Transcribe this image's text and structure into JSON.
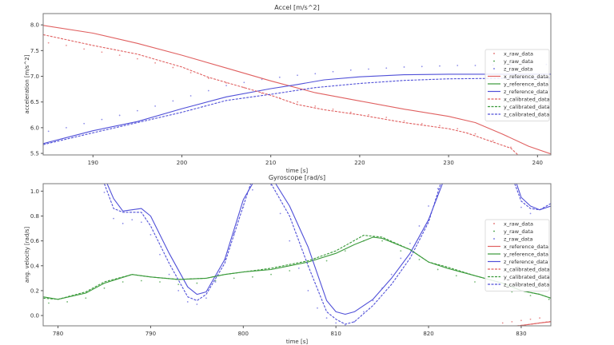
{
  "chart_data": [
    {
      "type": "line",
      "title": "Accel [m/s^2]",
      "xlabel": "time [s]",
      "ylabel": "acceleration [m/s^2]",
      "xlim": [
        184.4,
        241.5
      ],
      "ylim": [
        5.47,
        8.22
      ],
      "xticks": [
        190,
        200,
        210,
        220,
        230,
        240
      ],
      "yticks": [
        5.5,
        6.0,
        6.5,
        7.0,
        7.5,
        8.0
      ],
      "ytick_labels": [
        "5.5",
        "6.0",
        "6.5",
        "7.0",
        "7.5",
        "8.0"
      ],
      "grid": false,
      "legend_placement": "center right",
      "series": [
        {
          "name": "x_raw_data",
          "color": "#e06060",
          "style": "dots",
          "x": [
            185,
            187,
            189,
            191,
            193,
            195,
            197,
            199,
            201,
            203,
            205,
            207,
            209,
            211,
            213,
            215,
            217,
            219,
            221,
            223,
            225,
            227,
            229,
            231,
            233,
            235,
            237
          ],
          "y": [
            7.65,
            7.6,
            7.53,
            7.47,
            7.41,
            7.34,
            7.26,
            7.17,
            7.07,
            6.96,
            6.87,
            6.78,
            6.67,
            6.58,
            6.5,
            6.42,
            6.36,
            6.3,
            6.25,
            6.2,
            6.13,
            6.08,
            6.04,
            5.98,
            5.88,
            5.75,
            5.62
          ]
        },
        {
          "name": "y_raw_data",
          "color": "#3a9a3a",
          "style": "dots",
          "x": [],
          "y": []
        },
        {
          "name": "z_raw_data",
          "color": "#6060e0",
          "style": "dots",
          "x": [
            185,
            187,
            189,
            191,
            193,
            195,
            197,
            199,
            201,
            203,
            205,
            207,
            209,
            211,
            213,
            215,
            217,
            219,
            221,
            223,
            225,
            227,
            229,
            231,
            233,
            235,
            237,
            239,
            241
          ],
          "y": [
            5.93,
            6.0,
            6.08,
            6.16,
            6.24,
            6.33,
            6.42,
            6.52,
            6.62,
            6.72,
            6.82,
            6.88,
            6.94,
            6.98,
            7.02,
            7.05,
            7.09,
            7.12,
            7.14,
            7.16,
            7.18,
            7.19,
            7.2,
            7.21,
            7.21,
            7.22,
            7.22,
            7.23,
            7.23
          ]
        },
        {
          "name": "x_reference_data",
          "color": "#e06060",
          "style": "solid",
          "x": [
            184.4,
            190,
            195,
            200,
            205,
            210,
            215,
            220,
            225,
            230,
            233,
            236,
            239,
            241.5
          ],
          "y": [
            7.99,
            7.84,
            7.64,
            7.41,
            7.16,
            6.91,
            6.68,
            6.52,
            6.36,
            6.22,
            6.1,
            5.88,
            5.64,
            5.49
          ]
        },
        {
          "name": "y_reference_data",
          "color": "#3a9a3a",
          "style": "solid",
          "x": [],
          "y": []
        },
        {
          "name": "z_reference_data",
          "color": "#5050d8",
          "style": "solid",
          "x": [
            184.4,
            190,
            195,
            200,
            205,
            210,
            213,
            216,
            220,
            225,
            230,
            235,
            241.5
          ],
          "y": [
            5.69,
            5.94,
            6.12,
            6.37,
            6.6,
            6.76,
            6.84,
            6.93,
            6.99,
            7.03,
            7.04,
            7.04,
            7.04
          ]
        },
        {
          "name": "x_calibrated_data",
          "color": "#e06060",
          "style": "dashed",
          "x": [
            184.4,
            190,
            195,
            198,
            200,
            203,
            206,
            210,
            213,
            216,
            220,
            225,
            230,
            232,
            235,
            237,
            237.8
          ],
          "y": [
            7.81,
            7.6,
            7.43,
            7.28,
            7.18,
            6.98,
            6.83,
            6.63,
            6.45,
            6.35,
            6.25,
            6.1,
            5.98,
            5.9,
            5.72,
            5.6,
            5.47
          ]
        },
        {
          "name": "y_calibrated_data",
          "color": "#3a9a3a",
          "style": "dashed",
          "x": [],
          "y": []
        },
        {
          "name": "z_calibrated_data",
          "color": "#5050d8",
          "style": "dashed",
          "x": [
            184.4,
            190,
            195,
            200,
            205,
            210,
            215,
            220,
            225,
            230,
            241.5
          ],
          "y": [
            5.67,
            5.9,
            6.1,
            6.3,
            6.53,
            6.65,
            6.78,
            6.86,
            6.92,
            6.95,
            6.97
          ]
        }
      ]
    },
    {
      "type": "line",
      "title": "Gyroscope [rad/s]",
      "xlabel": "time [s]",
      "ylabel": "ang. velocity [rad/s]",
      "xlim": [
        778.4,
        833.2
      ],
      "ylim": [
        -0.083,
        1.06
      ],
      "xticks": [
        780,
        790,
        800,
        810,
        820,
        830
      ],
      "yticks": [
        0.0,
        0.2,
        0.4,
        0.6,
        0.8,
        1.0
      ],
      "ytick_labels": [
        "0.0",
        "0.2",
        "0.4",
        "0.6",
        "0.8",
        "1.0"
      ],
      "grid": false,
      "legend_placement": "center right",
      "series": [
        {
          "name": "x_raw_data",
          "color": "#e06060",
          "style": "dots",
          "x": [
            828,
            829,
            830,
            831,
            832
          ],
          "y": [
            -0.06,
            -0.05,
            -0.04,
            -0.03,
            -0.02
          ]
        },
        {
          "name": "y_raw_data",
          "color": "#3a9a3a",
          "style": "dots",
          "x": [
            779,
            781,
            783,
            785,
            787,
            789,
            791,
            793,
            795,
            797,
            799,
            801,
            803,
            805,
            807,
            809,
            811,
            813,
            815,
            817,
            819,
            821,
            823,
            825,
            827,
            829,
            831,
            833
          ],
          "y": [
            0.1,
            0.11,
            0.14,
            0.22,
            0.27,
            0.28,
            0.27,
            0.25,
            0.26,
            0.28,
            0.3,
            0.31,
            0.33,
            0.36,
            0.4,
            0.44,
            0.52,
            0.6,
            0.6,
            0.52,
            0.45,
            0.37,
            0.32,
            0.27,
            0.22,
            0.19,
            0.16,
            0.13
          ]
        },
        {
          "name": "z_raw_data",
          "color": "#6060e0",
          "style": "dots",
          "x": [
            785,
            786,
            787,
            788,
            789,
            790,
            791,
            792,
            793,
            794,
            795,
            796,
            797,
            798,
            799,
            800,
            801,
            803,
            804,
            805,
            806,
            807,
            808,
            809,
            810,
            811,
            812,
            813,
            814,
            815,
            816,
            817,
            818,
            819,
            820,
            821,
            830,
            831
          ],
          "y": [
            0.99,
            0.78,
            0.74,
            0.77,
            0.75,
            0.65,
            0.49,
            0.33,
            0.2,
            0.11,
            0.09,
            0.14,
            0.27,
            0.45,
            0.66,
            0.87,
            1.01,
            1.05,
            0.82,
            0.6,
            0.38,
            0.2,
            0.06,
            -0.02,
            -0.06,
            -0.08,
            -0.05,
            0.03,
            0.12,
            0.22,
            0.33,
            0.46,
            0.58,
            0.72,
            0.88,
            1.02,
            0.87,
            0.82
          ]
        },
        {
          "name": "x_reference_data",
          "color": "#e06060",
          "style": "solid",
          "x": [
            829,
            830,
            831,
            832,
            833.2
          ],
          "y": [
            -0.09,
            -0.08,
            -0.07,
            -0.06,
            -0.05
          ]
        },
        {
          "name": "y_reference_data",
          "color": "#3a9a3a",
          "style": "solid",
          "x": [
            778.4,
            780,
            783,
            785,
            788,
            790,
            793,
            796,
            798,
            800,
            803,
            805,
            807,
            810,
            812,
            814,
            815,
            818,
            820,
            822,
            825,
            828,
            830,
            832,
            833.2
          ],
          "y": [
            0.15,
            0.13,
            0.18,
            0.26,
            0.33,
            0.31,
            0.29,
            0.3,
            0.33,
            0.35,
            0.37,
            0.4,
            0.43,
            0.5,
            0.57,
            0.63,
            0.62,
            0.53,
            0.43,
            0.38,
            0.32,
            0.26,
            0.2,
            0.17,
            0.14
          ]
        },
        {
          "name": "z_reference_data",
          "color": "#5050d8",
          "style": "solid",
          "segments": [
            {
              "x": [
                785.3,
                786,
                787,
                788,
                789,
                790,
                792,
                794,
                795,
                796,
                798,
                800,
                801
              ],
              "y": [
                1.06,
                0.94,
                0.84,
                0.85,
                0.86,
                0.8,
                0.5,
                0.23,
                0.17,
                0.19,
                0.45,
                0.93,
                1.06
              ]
            },
            {
              "x": [
                803.5,
                805,
                807,
                809,
                810,
                811,
                812,
                814,
                816,
                818,
                820,
                821.5
              ],
              "y": [
                1.06,
                0.88,
                0.55,
                0.12,
                0.03,
                0.01,
                0.03,
                0.13,
                0.3,
                0.5,
                0.77,
                1.06
              ]
            },
            {
              "x": [
                829.5,
                830,
                831,
                832,
                833.2
              ],
              "y": [
                1.06,
                0.95,
                0.88,
                0.85,
                0.88
              ]
            }
          ]
        },
        {
          "name": "x_calibrated_data",
          "color": "#e06060",
          "style": "dashed",
          "x": [
            829.5,
            830.5,
            831.5,
            832.5,
            833.2
          ],
          "y": [
            -0.083,
            -0.075,
            -0.065,
            -0.055,
            -0.048
          ]
        },
        {
          "name": "y_calibrated_data",
          "color": "#3a9a3a",
          "style": "dashed",
          "x": [
            778.4,
            780,
            783,
            785,
            788,
            790,
            793,
            796,
            798,
            800,
            803,
            805,
            807,
            810,
            813,
            815,
            818,
            820,
            822,
            825,
            828,
            830,
            832,
            833.2
          ],
          "y": [
            0.14,
            0.13,
            0.19,
            0.27,
            0.33,
            0.31,
            0.29,
            0.3,
            0.33,
            0.35,
            0.38,
            0.41,
            0.44,
            0.52,
            0.645,
            0.63,
            0.53,
            0.43,
            0.39,
            0.32,
            0.26,
            0.2,
            0.17,
            0.14
          ]
        },
        {
          "name": "z_calibrated_data",
          "color": "#5050d8",
          "style": "dashed",
          "segments": [
            {
              "x": [
                785,
                786,
                787,
                789,
                790,
                792,
                794,
                795,
                796,
                798,
                800,
                800.8
              ],
              "y": [
                1.06,
                0.86,
                0.83,
                0.83,
                0.72,
                0.42,
                0.15,
                0.12,
                0.17,
                0.42,
                0.88,
                1.06
              ]
            },
            {
              "x": [
                803,
                805,
                807,
                809,
                810,
                811,
                812,
                814,
                816,
                818,
                820,
                821.3
              ],
              "y": [
                1.06,
                0.8,
                0.4,
                0.03,
                -0.03,
                -0.07,
                -0.05,
                0.08,
                0.25,
                0.46,
                0.75,
                1.06
              ]
            },
            {
              "x": [
                829.3,
                830,
                831,
                832,
                833.2
              ],
              "y": [
                1.06,
                0.92,
                0.86,
                0.85,
                0.9
              ]
            }
          ]
        }
      ]
    }
  ]
}
